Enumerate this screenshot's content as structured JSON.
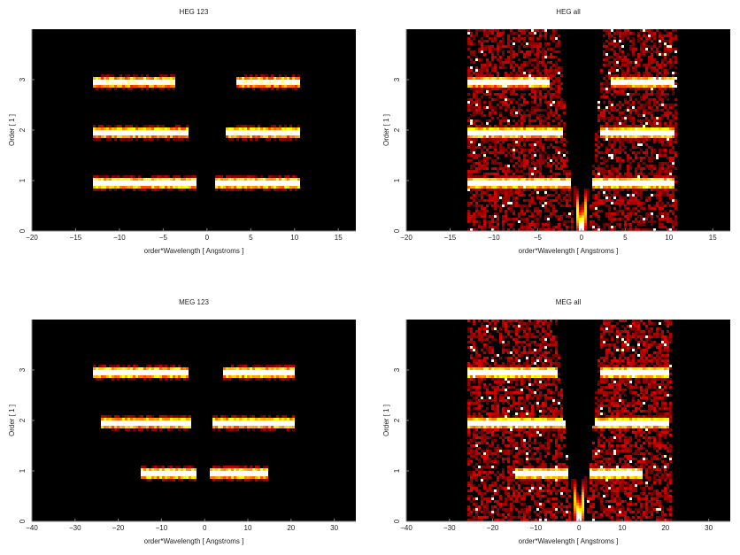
{
  "chart_data": [
    {
      "type": "heatmap",
      "title": "HEG 123",
      "xlabel": "order*Wavelength [ Angstroms ]",
      "ylabel": "Order [ 1 ]",
      "xlim": [
        -20,
        17
      ],
      "ylim": [
        0,
        4
      ],
      "xticks": [
        -20,
        -15,
        -10,
        -5,
        0,
        5,
        10,
        15
      ],
      "yticks": [
        0,
        1,
        2,
        3
      ],
      "colormap": "heat (black-red-yellow-white)",
      "bands": [
        {
          "order": 1,
          "xmin": -13,
          "xmax": -1.3,
          "peak": 1.0
        },
        {
          "order": 1,
          "xmin": 1,
          "xmax": 10.5,
          "peak": 1.0
        },
        {
          "order": 2,
          "xmin": -13,
          "xmax": -2.2,
          "peak": 0.9
        },
        {
          "order": 2,
          "xmin": 2.2,
          "xmax": 10.5,
          "peak": 0.9
        },
        {
          "order": 3,
          "xmin": -13,
          "xmax": -3.5,
          "peak": 0.85
        },
        {
          "order": 3,
          "xmin": 3.5,
          "xmax": 10.5,
          "peak": 0.85
        }
      ],
      "background": null,
      "zero_order": false
    },
    {
      "type": "heatmap",
      "title": "HEG all",
      "xlabel": "order*Wavelength [ Angstroms ]",
      "ylabel": "Order [ 1 ]",
      "xlim": [
        -20,
        17
      ],
      "ylim": [
        0,
        4
      ],
      "xticks": [
        -20,
        -15,
        -10,
        -5,
        0,
        5,
        10,
        15
      ],
      "yticks": [
        0,
        1,
        2,
        3
      ],
      "colormap": "heat (black-red-yellow-white)",
      "bands": [
        {
          "order": 1,
          "xmin": -13,
          "xmax": -1.3,
          "peak": 1.0
        },
        {
          "order": 1,
          "xmin": 1,
          "xmax": 10.5,
          "peak": 1.0
        },
        {
          "order": 2,
          "xmin": -13,
          "xmax": -2.2,
          "peak": 0.95
        },
        {
          "order": 2,
          "xmin": 2.2,
          "xmax": 10.5,
          "peak": 0.95
        },
        {
          "order": 3,
          "xmin": -13,
          "xmax": -3.5,
          "peak": 0.9
        },
        {
          "order": 3,
          "xmin": 3.5,
          "xmax": 10.5,
          "peak": 0.9
        }
      ],
      "background": {
        "xmin": -13,
        "xmax": 10.8,
        "level": 0.28
      },
      "zero_order": true
    },
    {
      "type": "heatmap",
      "title": "MEG 123",
      "xlabel": "order*Wavelength [ Angstroms ]",
      "ylabel": "Order [ 1 ]",
      "xlim": [
        -40,
        35
      ],
      "ylim": [
        0,
        4
      ],
      "xticks": [
        -40,
        -30,
        -20,
        -10,
        0,
        10,
        20,
        30
      ],
      "yticks": [
        0,
        1,
        2,
        3
      ],
      "colormap": "heat (black-red-yellow-white)",
      "bands": [
        {
          "order": 1,
          "xmin": -15,
          "xmax": -2,
          "peak": 1.0
        },
        {
          "order": 1,
          "xmin": 1,
          "xmax": 15,
          "peak": 1.0
        },
        {
          "order": 2,
          "xmin": -24,
          "xmax": -3,
          "peak": 0.95
        },
        {
          "order": 2,
          "xmin": 2,
          "xmax": 21,
          "peak": 0.95
        },
        {
          "order": 3,
          "xmin": -26,
          "xmax": -4,
          "peak": 0.95
        },
        {
          "order": 3,
          "xmin": 4,
          "xmax": 21,
          "peak": 0.95
        }
      ],
      "background": null,
      "zero_order": false
    },
    {
      "type": "heatmap",
      "title": "MEG all",
      "xlabel": "order*Wavelength [ Angstroms ]",
      "ylabel": "Order [ 1 ]",
      "xlim": [
        -40,
        35
      ],
      "ylim": [
        0,
        4
      ],
      "xticks": [
        -40,
        -30,
        -20,
        -10,
        0,
        10,
        20,
        30
      ],
      "yticks": [
        0,
        1,
        2,
        3
      ],
      "colormap": "heat (black-red-yellow-white)",
      "bands": [
        {
          "order": 1,
          "xmin": -15,
          "xmax": -2,
          "peak": 1.0
        },
        {
          "order": 1,
          "xmin": 1.5,
          "xmax": 15,
          "peak": 1.0
        },
        {
          "order": 2,
          "xmin": -26,
          "xmax": -2.5,
          "peak": 1.0
        },
        {
          "order": 2,
          "xmin": 2.5,
          "xmax": 21,
          "peak": 1.0
        },
        {
          "order": 3,
          "xmin": -26,
          "xmax": -5,
          "peak": 1.0
        },
        {
          "order": 3,
          "xmin": 5,
          "xmax": 21,
          "peak": 1.0
        }
      ],
      "background": {
        "xmin": -26,
        "xmax": 21.5,
        "level": 0.3
      },
      "zero_order": true
    }
  ]
}
